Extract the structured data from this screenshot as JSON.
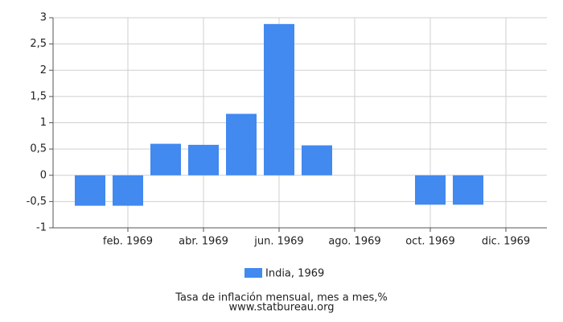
{
  "chart_data": {
    "type": "bar",
    "title": "Tasa de inflación mensual, mes a mes,%",
    "source": "www.statbureau.org",
    "categories": [
      null,
      "feb. 1969",
      null,
      "abr. 1969",
      null,
      "jun. 1969",
      null,
      "ago. 1969",
      null,
      "oct. 1969",
      null,
      "dic. 1969"
    ],
    "series": [
      {
        "name": "India, 1969",
        "color": "#4289f0",
        "values": [
          -0.58,
          -0.58,
          0.6,
          0.58,
          1.17,
          2.88,
          0.57,
          0,
          0,
          -0.56,
          -0.56,
          0
        ]
      }
    ],
    "ylim": [
      -1,
      3
    ],
    "yticks": [
      -1,
      {
        "value": -0.5,
        "label": "-0,5"
      },
      0,
      {
        "value": 0.5,
        "label": "0,5"
      },
      1,
      {
        "value": 1.5,
        "label": "1,5"
      },
      2,
      {
        "value": 2.5,
        "label": "2,5"
      },
      3
    ],
    "grid": true
  }
}
